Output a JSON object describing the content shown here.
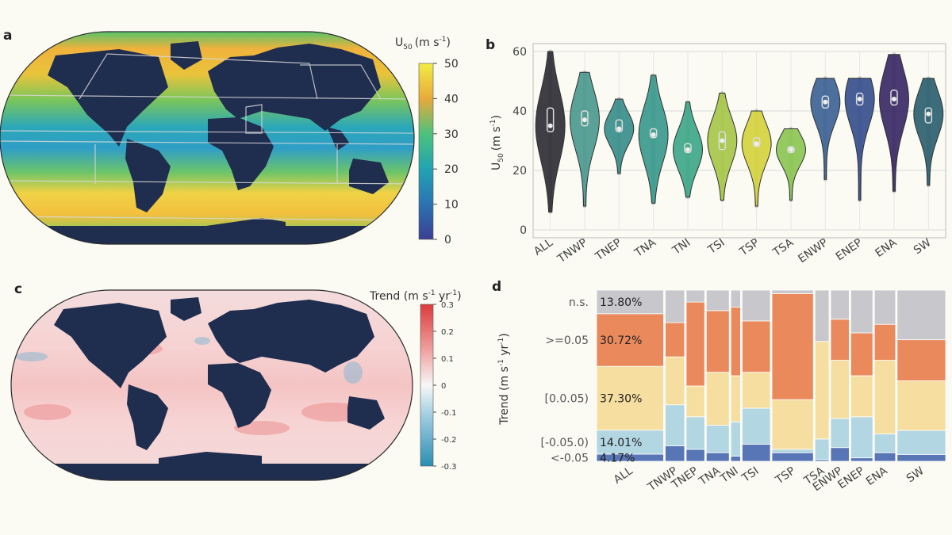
{
  "panels": {
    "a": {
      "letter": "a",
      "colorbar_title": "U",
      "colorbar_sub": "50",
      "colorbar_unit": "(m s",
      "colorbar_exp": "-1",
      "colorbar_close": ")",
      "colorbar_ticks": [
        "50",
        "40",
        "30",
        "20",
        "10",
        "0"
      ]
    },
    "b": {
      "letter": "b"
    },
    "c": {
      "letter": "c",
      "colorbar_title": "Trend (m s",
      "colorbar_exp1": "-1",
      "colorbar_mid": " yr",
      "colorbar_exp2": "-1",
      "colorbar_close": ")",
      "colorbar_ticks": [
        "0.3",
        "0.2",
        "0.1",
        "0",
        "-0.1",
        "-0.2",
        "-0.3"
      ]
    },
    "d": {
      "letter": "d"
    }
  },
  "colors": {
    "land": "#1f2d4f",
    "u50_low": "#3b4da0",
    "u50_high": "#f2e744",
    "trend_pos": "#e24a4a",
    "trend_neg": "#3a94b8"
  },
  "chart_data": [
    {
      "type": "violin",
      "panel": "b",
      "categories": [
        "ALL",
        "TNWP",
        "TNEP",
        "TNA",
        "TNI",
        "TSI",
        "TSP",
        "TSA",
        "ENWP",
        "ENEP",
        "ENA",
        "SW"
      ],
      "ylabel_main": "U",
      "ylabel_sub": "50",
      "ylabel_unit": "(m s",
      "ylabel_exp": "-1",
      "ylabel_close": ")",
      "ylim": [
        0,
        60
      ],
      "yticks": [
        "0",
        "20",
        "40",
        "60"
      ],
      "grid": true,
      "series": [
        {
          "median": 35,
          "q1": 33,
          "q3": 41,
          "min": 6,
          "max": 60,
          "color": "#2f2f36"
        },
        {
          "median": 37,
          "q1": 35,
          "q3": 40,
          "min": 8,
          "max": 53,
          "color": "#4d9a90"
        },
        {
          "median": 34,
          "q1": 33,
          "q3": 37,
          "min": 19,
          "max": 44,
          "color": "#3a8f8c"
        },
        {
          "median": 32,
          "q1": 31,
          "q3": 34,
          "min": 9,
          "max": 52,
          "color": "#3b9a8d"
        },
        {
          "median": 27,
          "q1": 26,
          "q3": 29,
          "min": 11,
          "max": 43,
          "color": "#3fa889"
        },
        {
          "median": 30,
          "q1": 27,
          "q3": 33,
          "min": 10,
          "max": 46,
          "color": "#a8c84a"
        },
        {
          "median": 29,
          "q1": 28,
          "q3": 31,
          "min": 8,
          "max": 40,
          "color": "#d5d33f"
        },
        {
          "median": 27,
          "q1": 26,
          "q3": 28,
          "min": 10,
          "max": 34,
          "color": "#8cc653"
        },
        {
          "median": 43,
          "q1": 41,
          "q3": 45,
          "min": 17,
          "max": 51,
          "color": "#3f6496"
        },
        {
          "median": 44,
          "q1": 42,
          "q3": 46,
          "min": 10,
          "max": 51,
          "color": "#38508f"
        },
        {
          "median": 44,
          "q1": 42,
          "q3": 47,
          "min": 13,
          "max": 59,
          "color": "#3a2a66"
        },
        {
          "median": 39,
          "q1": 36,
          "q3": 41,
          "min": 15,
          "max": 51,
          "color": "#2d6270"
        }
      ]
    },
    {
      "type": "stacked-bar",
      "panel": "d",
      "categories": [
        "ALL",
        "TNWP",
        "TNEP",
        "TNA",
        "TNI",
        "TSI",
        "TSP",
        "TSA",
        "ENWP",
        "ENEP",
        "ENA",
        "SW"
      ],
      "ylabel": "Trend (m s",
      "ylabel_exp1": "-1",
      "ylabel_mid": " yr",
      "ylabel_exp2": "-1",
      "ylabel_close": ")",
      "stack_order_bottom_to_top": [
        "<-0.05",
        "[-0.05,0)",
        "[0,0.05)",
        ">=0.05",
        "n.s."
      ],
      "tick_labels": [
        "n.s.",
        ">=0.05",
        "[0.0.05)",
        "[-0.05.0)",
        "<-0.05"
      ],
      "series_colors": [
        "#5875b6",
        "#b3d6e3",
        "#f6dea0",
        "#ea8a5c",
        "#c8c8cc"
      ],
      "bar_widths_percent": [
        7.6,
        2.2,
        2.1,
        2.6,
        1.1,
        3.2,
        4.7,
        1.6,
        2.1,
        2.5,
        2.4,
        5.5
      ],
      "all_labels": [
        "13.80%",
        "30.72%",
        "37.30%",
        "14.01%",
        "4.17%"
      ],
      "values": [
        [
          4.17,
          14.01,
          37.3,
          30.72,
          13.8
        ],
        [
          9,
          24,
          28,
          20,
          19
        ],
        [
          7,
          19,
          18,
          49,
          7
        ],
        [
          5,
          16,
          31,
          36,
          12
        ],
        [
          3,
          20,
          27,
          40,
          10
        ],
        [
          10,
          21,
          21,
          30,
          18
        ],
        [
          5,
          2,
          29,
          62,
          2
        ],
        [
          1,
          12,
          57,
          0,
          30
        ],
        [
          8,
          17,
          34,
          24,
          17
        ],
        [
          2,
          24,
          24,
          25,
          25
        ],
        [
          5,
          11,
          43,
          21,
          20
        ],
        [
          4,
          14,
          29,
          24,
          29
        ]
      ]
    }
  ]
}
